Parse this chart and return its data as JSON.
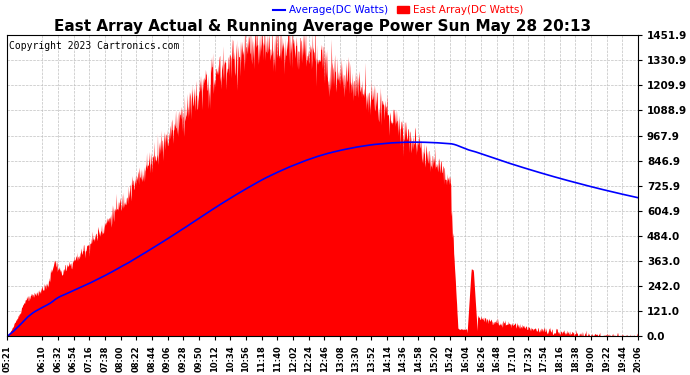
{
  "title": "East Array Actual & Running Average Power Sun May 28 20:13",
  "copyright": "Copyright 2023 Cartronics.com",
  "legend_avg": "Average(DC Watts)",
  "legend_east": "East Array(DC Watts)",
  "ymax": 1451.9,
  "ymin": 0.0,
  "yticks": [
    0.0,
    121.0,
    242.0,
    363.0,
    484.0,
    604.9,
    725.9,
    846.9,
    967.9,
    1088.9,
    1209.9,
    1330.9,
    1451.9
  ],
  "bg_color": "#ffffff",
  "plot_bg_color": "#ffffff",
  "grid_color": "#c0c0c0",
  "area_color": "#ff0000",
  "avg_line_color": "#0000ff",
  "title_fontsize": 11,
  "copyright_fontsize": 7,
  "x_tick_fontsize": 6,
  "y_tick_fontsize": 7.5,
  "xtick_labels": [
    "05:21",
    "06:10",
    "06:32",
    "06:54",
    "07:16",
    "07:38",
    "08:00",
    "08:22",
    "08:44",
    "09:06",
    "09:28",
    "09:50",
    "10:12",
    "10:34",
    "10:56",
    "11:18",
    "11:40",
    "12:02",
    "12:24",
    "12:46",
    "13:08",
    "13:30",
    "13:52",
    "14:14",
    "14:36",
    "14:58",
    "15:20",
    "15:42",
    "16:04",
    "16:26",
    "16:48",
    "17:10",
    "17:32",
    "17:54",
    "18:16",
    "18:38",
    "19:00",
    "19:22",
    "19:44",
    "20:06"
  ]
}
